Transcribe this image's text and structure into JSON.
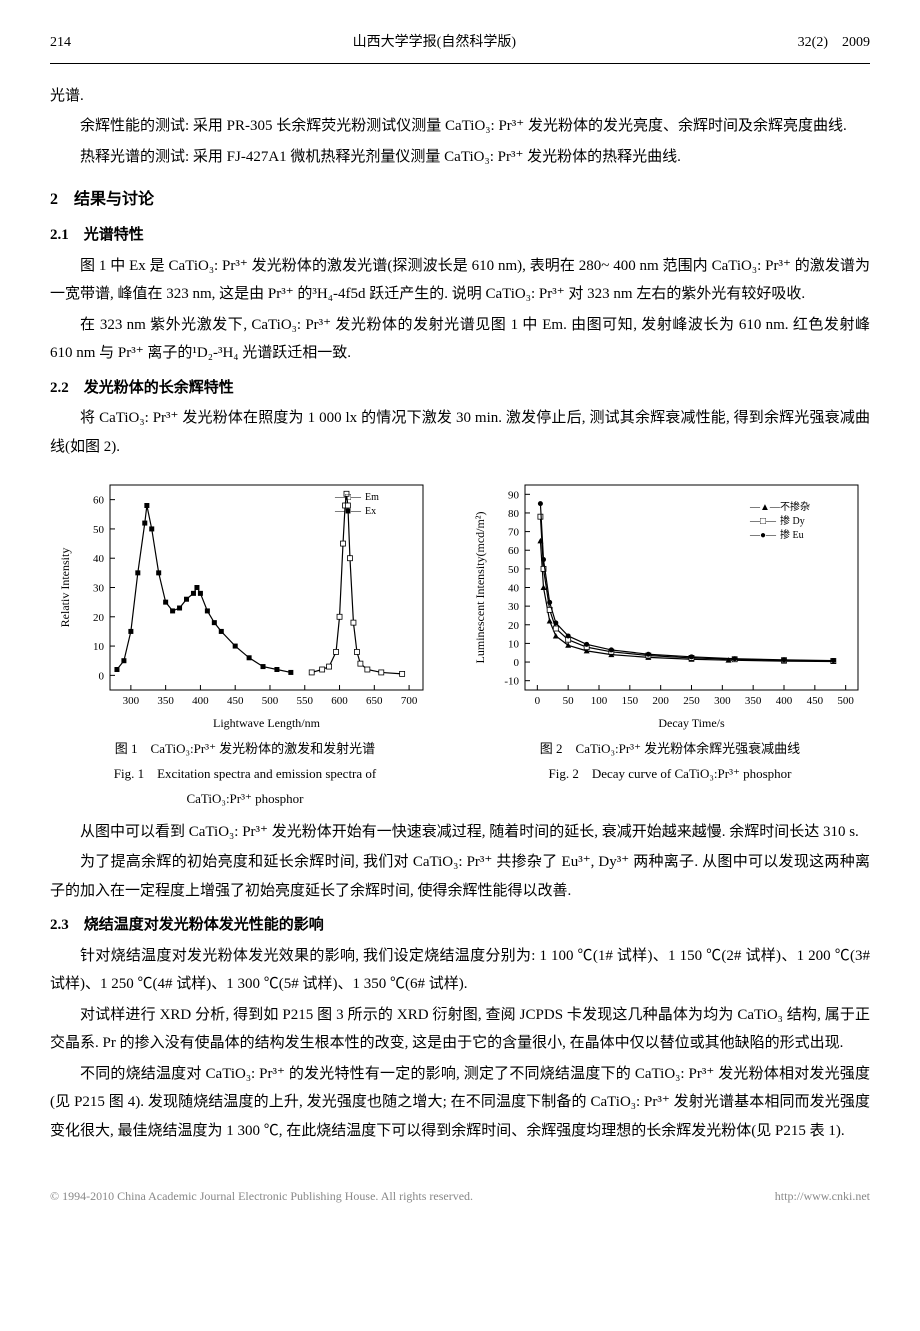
{
  "header": {
    "page_num": "214",
    "journal": "山西大学学报(自然科学版)",
    "issue": "32(2)　2009"
  },
  "body": {
    "p0": "光谱.",
    "p1": "余辉性能的测试: 采用 PR-305 长余辉荧光粉测试仪测量 CaTiO₃: Pr³⁺ 发光粉体的发光亮度、余辉时间及余辉亮度曲线.",
    "p2": "热释光谱的测试: 采用 FJ-427A1 微机热释光剂量仪测量 CaTiO₃: Pr³⁺ 发光粉体的热释光曲线.",
    "s2": "2　结果与讨论",
    "s21": "2.1　光谱特性",
    "p3": "图 1 中 Ex 是 CaTiO₃: Pr³⁺ 发光粉体的激发光谱(探测波长是 610 nm), 表明在 280~ 400 nm 范围内 CaTiO₃: Pr³⁺ 的激发谱为一宽带谱, 峰值在 323 nm, 这是由 Pr³⁺ 的³H₄-4f5d 跃迁产生的. 说明 CaTiO₃: Pr³⁺ 对 323 nm 左右的紫外光有较好吸收.",
    "p4": "在 323 nm 紫外光激发下, CaTiO₃: Pr³⁺ 发光粉体的发射光谱见图 1 中 Em. 由图可知, 发射峰波长为 610 nm. 红色发射峰 610 nm 与 Pr³⁺ 离子的¹D₂-³H₄ 光谱跃迁相一致.",
    "s22": "2.2　发光粉体的长余辉特性",
    "p5": "将 CaTiO₃: Pr³⁺ 发光粉体在照度为 1 000 lx 的情况下激发 30 min. 激发停止后, 测试其余辉衰减性能, 得到余辉光强衰减曲线(如图 2).",
    "p6": "从图中可以看到 CaTiO₃: Pr³⁺ 发光粉体开始有一快速衰减过程, 随着时间的延长, 衰减开始越来越慢. 余辉时间长达 310 s.",
    "p7": "为了提高余辉的初始亮度和延长余辉时间, 我们对 CaTiO₃: Pr³⁺ 共掺杂了 Eu³⁺, Dy³⁺ 两种离子. 从图中可以发现这两种离子的加入在一定程度上增强了初始亮度延长了余辉时间, 使得余辉性能得以改善.",
    "s23": "2.3　烧结温度对发光粉体发光性能的影响",
    "p8": "针对烧结温度对发光粉体发光效果的影响, 我们设定烧结温度分别为: 1 100 ℃(1# 试样)、1 150 ℃(2# 试样)、1 200 ℃(3# 试样)、1 250 ℃(4# 试样)、1 300 ℃(5# 试样)、1 350 ℃(6# 试样).",
    "p9": "对试样进行 XRD 分析, 得到如 P215 图 3 所示的 XRD 衍射图, 查阅 JCPDS 卡发现这几种晶体为均为 CaTiO₃ 结构, 属于正交晶系. Pr 的掺入没有使晶体的结构发生根本性的改变, 这是由于它的含量很小, 在晶体中仅以替位或其他缺陷的形式出现.",
    "p10": "不同的烧结温度对 CaTiO₃: Pr³⁺ 的发光特性有一定的影响, 测定了不同烧结温度下的 CaTiO₃: Pr³⁺ 发光粉体相对发光强度(见 P215 图 4). 发现随烧结温度的上升, 发光强度也随之增大; 在不同温度下制备的 CaTiO₃: Pr³⁺ 发射光谱基本相同而发光强度变化很大, 最佳烧结温度为 1 300 ℃, 在此烧结温度下可以得到余辉时间、余辉强度均理想的长余辉发光粉体(见 P215 表 1)."
  },
  "fig1": {
    "caption_zh": "图 1　CaTiO₃:Pr³⁺ 发光粉体的激发和发射光谱",
    "caption_en1": "Fig. 1　Excitation spectra and emission spectra of",
    "caption_en2": "CaTiO₃:Pr³⁺ phosphor",
    "xlabel": "Lightwave Length/nm",
    "ylabel": "Relativ Intensity",
    "xticks": [
      300,
      350,
      400,
      450,
      500,
      550,
      600,
      650,
      700
    ],
    "yticks": [
      0,
      10,
      20,
      30,
      40,
      50,
      60
    ],
    "xlim": [
      270,
      720
    ],
    "ylim": [
      -5,
      65
    ],
    "legend": [
      "Em",
      "Ex"
    ],
    "legend_markers": [
      "□",
      "■"
    ],
    "series_ex": [
      [
        280,
        2
      ],
      [
        290,
        5
      ],
      [
        300,
        15
      ],
      [
        310,
        35
      ],
      [
        320,
        52
      ],
      [
        323,
        58
      ],
      [
        330,
        50
      ],
      [
        340,
        35
      ],
      [
        350,
        25
      ],
      [
        360,
        22
      ],
      [
        370,
        23
      ],
      [
        380,
        26
      ],
      [
        390,
        28
      ],
      [
        395,
        30
      ],
      [
        400,
        28
      ],
      [
        410,
        22
      ],
      [
        420,
        18
      ],
      [
        430,
        15
      ],
      [
        450,
        10
      ],
      [
        470,
        6
      ],
      [
        490,
        3
      ],
      [
        510,
        2
      ],
      [
        530,
        1
      ]
    ],
    "series_em": [
      [
        560,
        1
      ],
      [
        575,
        2
      ],
      [
        585,
        3
      ],
      [
        595,
        8
      ],
      [
        600,
        20
      ],
      [
        605,
        45
      ],
      [
        608,
        58
      ],
      [
        610,
        62
      ],
      [
        612,
        58
      ],
      [
        615,
        40
      ],
      [
        620,
        18
      ],
      [
        625,
        8
      ],
      [
        630,
        4
      ],
      [
        640,
        2
      ],
      [
        660,
        1
      ],
      [
        690,
        0.5
      ]
    ],
    "line_color": "#000000",
    "background": "#ffffff"
  },
  "fig2": {
    "caption_zh": "图 2　CaTiO₃:Pr³⁺ 发光粉体余辉光强衰减曲线",
    "caption_en": "Fig. 2　Decay curve of CaTiO₃:Pr³⁺ phosphor",
    "xlabel": "Decay Time/s",
    "ylabel": "Luminescent Intensity(mcd/m²)",
    "xticks": [
      0,
      50,
      100,
      150,
      200,
      250,
      300,
      350,
      400,
      450,
      500
    ],
    "yticks": [
      -10,
      0,
      10,
      20,
      30,
      40,
      50,
      60,
      70,
      80,
      90
    ],
    "xlim": [
      -20,
      520
    ],
    "ylim": [
      -15,
      95
    ],
    "legend": [
      "不掺杂",
      "掺 Dy",
      "掺 Eu"
    ],
    "legend_markers": [
      "▲",
      "□",
      "●"
    ],
    "series_undoped": [
      [
        5,
        65
      ],
      [
        10,
        40
      ],
      [
        20,
        22
      ],
      [
        30,
        14
      ],
      [
        50,
        9
      ],
      [
        80,
        6
      ],
      [
        120,
        4
      ],
      [
        180,
        2.5
      ],
      [
        250,
        1.5
      ],
      [
        310,
        1
      ],
      [
        400,
        0.5
      ],
      [
        480,
        0.3
      ]
    ],
    "series_dy": [
      [
        5,
        78
      ],
      [
        10,
        50
      ],
      [
        20,
        28
      ],
      [
        30,
        18
      ],
      [
        50,
        12
      ],
      [
        80,
        8
      ],
      [
        120,
        5.5
      ],
      [
        180,
        3.5
      ],
      [
        250,
        2.2
      ],
      [
        320,
        1.5
      ],
      [
        400,
        1
      ],
      [
        480,
        0.6
      ]
    ],
    "series_eu": [
      [
        5,
        85
      ],
      [
        10,
        55
      ],
      [
        20,
        32
      ],
      [
        30,
        21
      ],
      [
        50,
        14
      ],
      [
        80,
        9.5
      ],
      [
        120,
        6.5
      ],
      [
        180,
        4.2
      ],
      [
        250,
        2.8
      ],
      [
        320,
        1.8
      ],
      [
        400,
        1.2
      ],
      [
        480,
        0.8
      ]
    ],
    "line_color": "#000000",
    "background": "#ffffff"
  },
  "footer": {
    "left": "© 1994-2010 China Academic Journal Electronic Publishing House. All rights reserved.",
    "right": "http://www.cnki.net"
  }
}
